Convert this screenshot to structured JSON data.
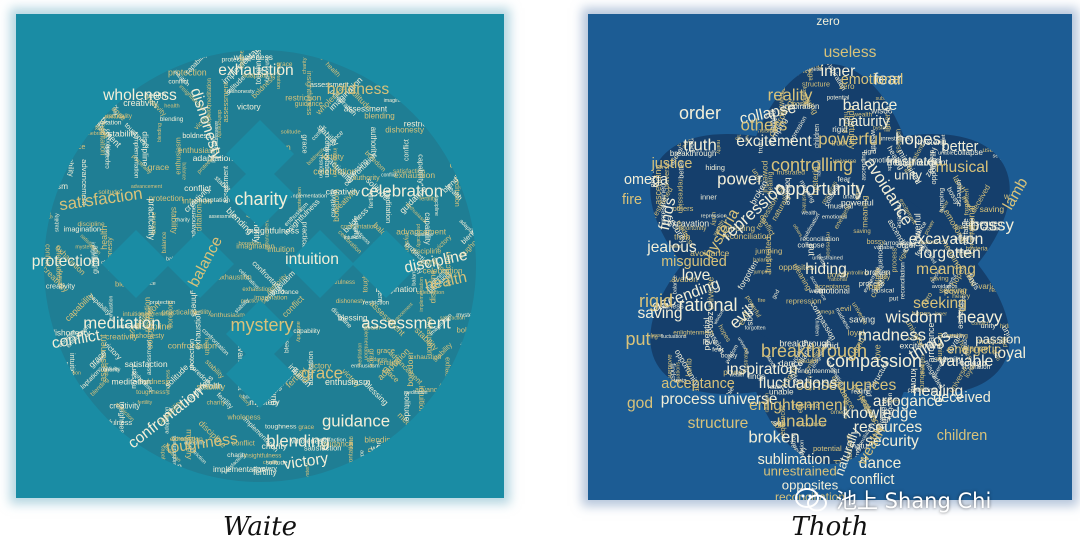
{
  "captions": {
    "left": "Waite",
    "right": "Thoth"
  },
  "watermark": {
    "text": "池上 Shang Chi",
    "icon": "wechat-icon"
  },
  "colors": {
    "waite_bg": "#1a8ca4",
    "waite_cloud": "#1f7e94",
    "thoth_bg": "#1c5c94",
    "thoth_cloud": "#153f6c",
    "word_light": "#f3efd8",
    "word_gold": "#d8c27a"
  },
  "waite_words": [
    {
      "t": "exhaustion",
      "s": 1.3
    },
    {
      "t": "boldness",
      "s": 1.3
    },
    {
      "t": "wholeness",
      "s": 1.3
    },
    {
      "t": "dishonesty",
      "s": 1.3
    },
    {
      "t": "satisfaction",
      "s": 1.4
    },
    {
      "t": "charity",
      "s": 1.5
    },
    {
      "t": "celebration",
      "s": 1.4
    },
    {
      "t": "balance",
      "s": 1.3
    },
    {
      "t": "intuition",
      "s": 1.3
    },
    {
      "t": "discipline",
      "s": 1.3
    },
    {
      "t": "health",
      "s": 1.3
    },
    {
      "t": "protection",
      "s": 1.3
    },
    {
      "t": "meditation",
      "s": 1.4
    },
    {
      "t": "mystery",
      "s": 1.5
    },
    {
      "t": "assessment",
      "s": 1.4
    },
    {
      "t": "conflict",
      "s": 1.3
    },
    {
      "t": "grace",
      "s": 1.4
    },
    {
      "t": "confrontation",
      "s": 1.3
    },
    {
      "t": "guidance",
      "s": 1.4
    },
    {
      "t": "toughness",
      "s": 1.3
    },
    {
      "t": "blending",
      "s": 1.4
    },
    {
      "t": "victory",
      "s": 1.3
    },
    {
      "t": "fertility",
      "s": 1
    },
    {
      "t": "creativity",
      "s": 1
    },
    {
      "t": "adaptation",
      "s": 1
    },
    {
      "t": "enthusiasm",
      "s": 1
    },
    {
      "t": "authority",
      "s": 1
    },
    {
      "t": "imagination",
      "s": 1
    },
    {
      "t": "advancement",
      "s": 1
    },
    {
      "t": "restriction",
      "s": 1
    },
    {
      "t": "boredom",
      "s": 1
    },
    {
      "t": "practicality",
      "s": 1
    },
    {
      "t": "insightfulness",
      "s": 1
    },
    {
      "t": "implementation",
      "s": 1
    },
    {
      "t": "capability",
      "s": 1
    },
    {
      "t": "blessing",
      "s": 1
    },
    {
      "t": "solitude",
      "s": 1
    },
    {
      "t": "stability",
      "s": 1
    }
  ],
  "thoth_words": [
    {
      "t": "zero",
      "s": 1
    },
    {
      "t": "useless",
      "s": 1.3
    },
    {
      "t": "inner",
      "s": 1.3
    },
    {
      "t": "fear",
      "s": 1.4
    },
    {
      "t": "reality",
      "s": 1.4
    },
    {
      "t": "collapse",
      "s": 1.3
    },
    {
      "t": "balance",
      "s": 1.3
    },
    {
      "t": "emotional",
      "s": 1.2
    },
    {
      "t": "order",
      "s": 1.5
    },
    {
      "t": "maturity",
      "s": 1.2
    },
    {
      "t": "others",
      "s": 1.4
    },
    {
      "t": "truth",
      "s": 1.4
    },
    {
      "t": "excitement",
      "s": 1.3
    },
    {
      "t": "powerful",
      "s": 1.4
    },
    {
      "t": "hopes",
      "s": 1.4
    },
    {
      "t": "better",
      "s": 1.2
    },
    {
      "t": "justice",
      "s": 1.2
    },
    {
      "t": "omega",
      "s": 1.2
    },
    {
      "t": "power",
      "s": 1.4
    },
    {
      "t": "controlling",
      "s": 1.5
    },
    {
      "t": "frustrated",
      "s": 1.1
    },
    {
      "t": "unity",
      "s": 1.1
    },
    {
      "t": "musical",
      "s": 1.3
    },
    {
      "t": "opportunity",
      "s": 1.5
    },
    {
      "t": "avoidance",
      "s": 1.4
    },
    {
      "t": "fire",
      "s": 1.2
    },
    {
      "t": "repression",
      "s": 1.4
    },
    {
      "t": "finds",
      "s": 1.3
    },
    {
      "t": "hysteria",
      "s": 1.3
    },
    {
      "t": "bossy",
      "s": 1.4
    },
    {
      "t": "excavation",
      "s": 1.3
    },
    {
      "t": "lamb",
      "s": 1.3
    },
    {
      "t": "jealous",
      "s": 1.3
    },
    {
      "t": "forgotten",
      "s": 1.3
    },
    {
      "t": "misguided",
      "s": 1.2
    },
    {
      "t": "hiding",
      "s": 1.3
    },
    {
      "t": "love",
      "s": 1.3
    },
    {
      "t": "meaning",
      "s": 1.3
    },
    {
      "t": "ascending",
      "s": 1.3
    },
    {
      "t": "rational",
      "s": 1.5
    },
    {
      "t": "rigid",
      "s": 1.5
    },
    {
      "t": "saving",
      "s": 1.3
    },
    {
      "t": "evil",
      "s": 1.4
    },
    {
      "t": "seeking",
      "s": 1.3
    },
    {
      "t": "wisdom",
      "s": 1.4
    },
    {
      "t": "heavy",
      "s": 1.4
    },
    {
      "t": "put",
      "s": 1.5
    },
    {
      "t": "madness",
      "s": 1.4
    },
    {
      "t": "compassion",
      "s": 1.5
    },
    {
      "t": "breakthrough",
      "s": 1.5
    },
    {
      "t": "things",
      "s": 1.4
    },
    {
      "t": "inspiration",
      "s": 1.3
    },
    {
      "t": "consequences",
      "s": 1.3
    },
    {
      "t": "variable",
      "s": 1.3
    },
    {
      "t": "loyal",
      "s": 1.3
    },
    {
      "t": "acceptance",
      "s": 1.2
    },
    {
      "t": "fluctuations",
      "s": 1.3
    },
    {
      "t": "healing",
      "s": 1.3
    },
    {
      "t": "god",
      "s": 1.3
    },
    {
      "t": "process",
      "s": 1.3
    },
    {
      "t": "universe",
      "s": 1.3
    },
    {
      "t": "enlightenment",
      "s": 1.3
    },
    {
      "t": "arrogance",
      "s": 1.3
    },
    {
      "t": "deceived",
      "s": 1.2
    },
    {
      "t": "unable",
      "s": 1.4
    },
    {
      "t": "knowledge",
      "s": 1.3
    },
    {
      "t": "resources",
      "s": 1.3
    },
    {
      "t": "structure",
      "s": 1.3
    },
    {
      "t": "broken",
      "s": 1.4
    },
    {
      "t": "security",
      "s": 1.3
    },
    {
      "t": "children",
      "s": 1.2
    },
    {
      "t": "sublimation",
      "s": 1.2
    },
    {
      "t": "dance",
      "s": 1.3
    },
    {
      "t": "unrestrained",
      "s": 1.1
    },
    {
      "t": "opposites",
      "s": 1.1
    },
    {
      "t": "conflict",
      "s": 1.2
    },
    {
      "t": "reconciliation",
      "s": 1
    },
    {
      "t": "jumping",
      "s": 1
    },
    {
      "t": "potential",
      "s": 1
    },
    {
      "t": "wealth",
      "s": 1.2
    },
    {
      "t": "naturally",
      "s": 1.1
    },
    {
      "t": "passion",
      "s": 1.1
    },
    {
      "t": "energetic",
      "s": 1.1
    },
    {
      "t": "universe",
      "s": 1.2
    },
    {
      "t": "process",
      "s": 1.3
    }
  ]
}
